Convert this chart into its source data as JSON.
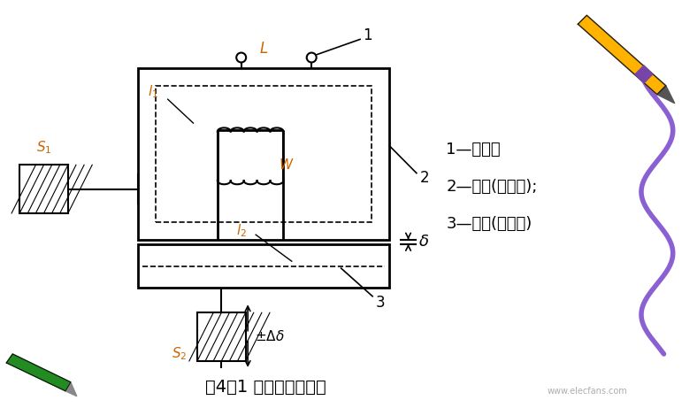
{
  "bg_color": "#ffffff",
  "line_color": "#000000",
  "label_color": "#cc6600",
  "title": "图4－1 变磁阻式传感器",
  "title_fontsize": 14,
  "legend_lines": [
    "1—线圈；",
    "2—铁芯(定铁芯);",
    "3—衔铁(动铁芯)"
  ],
  "legend_fontsize": 13
}
